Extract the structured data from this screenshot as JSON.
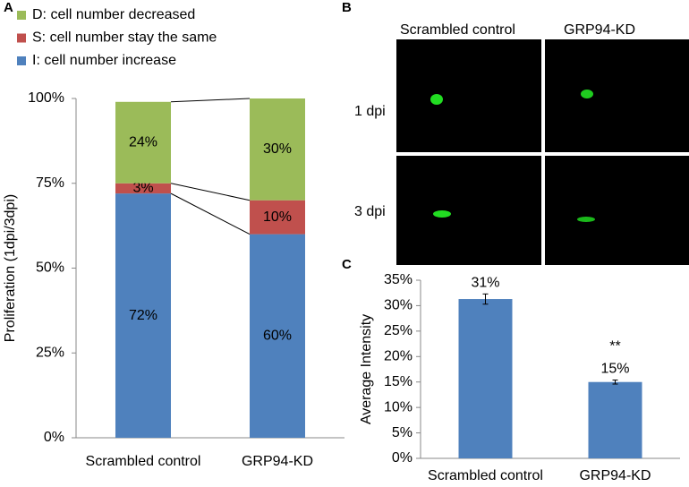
{
  "panel_labels": [
    "A",
    "B",
    "C"
  ],
  "image_panel": {
    "columns": [
      "Scrambled control",
      "GRP94-KD"
    ],
    "rows": [
      "1 dpi",
      "3 dpi"
    ]
  },
  "chart_data": [
    {
      "type": "stacked_bar",
      "ylabel": "Proliferation (1dpi/3dpi)",
      "categories": [
        "Scrambled control",
        "GRP94-KD"
      ],
      "series": [
        {
          "name": "I: cell number increase",
          "color": "#4f81bd",
          "values": [
            72,
            60
          ],
          "value_labels": [
            "72%",
            "60%"
          ]
        },
        {
          "name": "S: cell number stay the same",
          "color": "#c0504d",
          "values": [
            3,
            10
          ],
          "value_labels": [
            "3%",
            "10%"
          ]
        },
        {
          "name": "D: cell number decreased",
          "color": "#9bbb59",
          "values": [
            24,
            30
          ],
          "value_labels": [
            "24%",
            "30%"
          ]
        }
      ],
      "ylim": [
        0,
        100
      ],
      "yticks": [
        {
          "value": 0,
          "label": "0%"
        },
        {
          "value": 25,
          "label": "25%"
        },
        {
          "value": 50,
          "label": "50%"
        },
        {
          "value": 75,
          "label": "75%"
        },
        {
          "value": 100,
          "label": "100%"
        }
      ],
      "legend": "top-left"
    },
    {
      "type": "bar",
      "ylabel": "Average Intensity",
      "categories": [
        "Scrambled control",
        "GRP94-KD"
      ],
      "values": [
        31.3,
        15.0
      ],
      "value_labels": [
        "31%",
        "15%"
      ],
      "errors": [
        1.0,
        0.4
      ],
      "color": "#4f81bd",
      "annotations": [
        {
          "text": "**",
          "x": "GRP94-KD"
        }
      ],
      "ylim": [
        0,
        35
      ],
      "yticks": [
        {
          "value": 0,
          "label": "0%"
        },
        {
          "value": 5,
          "label": "5%"
        },
        {
          "value": 10,
          "label": "10%"
        },
        {
          "value": 15,
          "label": "15%"
        },
        {
          "value": 20,
          "label": "20%"
        },
        {
          "value": 25,
          "label": "25%"
        },
        {
          "value": 30,
          "label": "30%"
        },
        {
          "value": 35,
          "label": "35%"
        }
      ]
    }
  ]
}
